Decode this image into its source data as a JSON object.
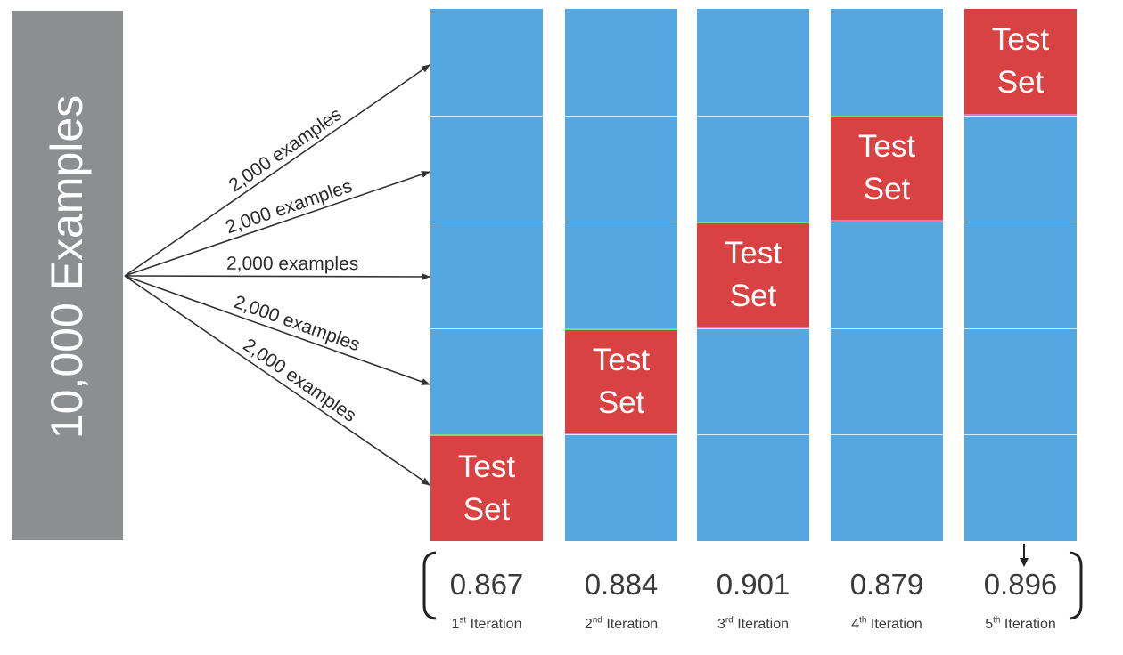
{
  "total": {
    "label": "10,000 Examples"
  },
  "split_label": "2,000 examples",
  "test_label_line1": "Test",
  "test_label_line2": "Set",
  "folds": [
    {
      "score": "0.867",
      "iteration_num": "1",
      "iteration_suffix": "st",
      "iteration_word": "Iteration",
      "test_index": 4
    },
    {
      "score": "0.884",
      "iteration_num": "2",
      "iteration_suffix": "nd",
      "iteration_word": "Iteration",
      "test_index": 3
    },
    {
      "score": "0.901",
      "iteration_num": "3",
      "iteration_suffix": "rd",
      "iteration_word": "Iteration",
      "test_index": 2
    },
    {
      "score": "0.879",
      "iteration_num": "4",
      "iteration_suffix": "th",
      "iteration_word": "Iteration",
      "test_index": 1
    },
    {
      "score": "0.896",
      "iteration_num": "5",
      "iteration_suffix": "th",
      "iteration_word": "Iteration",
      "test_index": 0
    }
  ],
  "colors": {
    "train": "#55a7e1",
    "test": "#d94242",
    "total": "#8c8e90"
  }
}
